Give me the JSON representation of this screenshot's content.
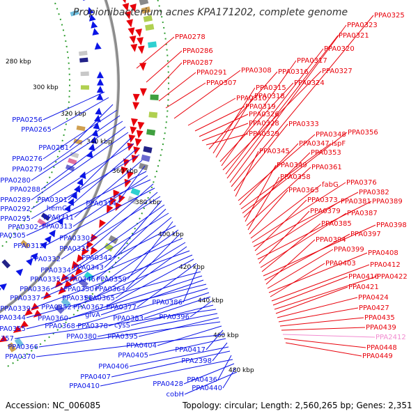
{
  "title": "Propionibacterium acnes KPA171202, complete genome",
  "accession": "Accession: NC_006085",
  "topology": "Topology: circular; Length: 2,560,265 bp; Genes: 2,351",
  "colors": {
    "forward": "#e8000a",
    "reverse": "#0a14e6",
    "highlight": "#f28bd0",
    "backbone": "#8c8c8c",
    "gc_dots": "#2f9e2f"
  },
  "kbp_labels": [
    "280 kbp",
    "300 kbp",
    "320 kbp",
    "340 kbp",
    "360 kbp",
    "380 kbp",
    "400 kbp",
    "420 kbp",
    "440 kbp",
    "460 kbp",
    "480 kbp"
  ],
  "forward_genes": [
    {
      "label": "PPA0278"
    },
    {
      "label": "PPA0286"
    },
    {
      "label": "PPA0287"
    },
    {
      "label": "PPA0291"
    },
    {
      "label": "PPA0307"
    },
    {
      "label": "PPA0308"
    },
    {
      "label": "PPA0310"
    },
    {
      "label": "PPA0319"
    },
    {
      "label": "PPA0326"
    },
    {
      "label": "PPA0328"
    },
    {
      "label": "PPA0329"
    },
    {
      "label": "PPA0316"
    },
    {
      "label": "PPA0315"
    },
    {
      "label": "PPA0318"
    },
    {
      "label": "PPA0324"
    },
    {
      "label": "PPA0317"
    },
    {
      "label": "PPA0327"
    },
    {
      "label": "PPA0320"
    },
    {
      "label": "PPA0321"
    },
    {
      "label": "PPA0323"
    },
    {
      "label": "PPA0325"
    },
    {
      "label": "PPA0333"
    },
    {
      "label": "PPA0345"
    },
    {
      "label": "PPA0348"
    },
    {
      "label": "PPA0347"
    },
    {
      "label": "ispF"
    },
    {
      "label": "PPA0356"
    },
    {
      "label": "PPA0353"
    },
    {
      "label": "PPA0349"
    },
    {
      "label": "PPA0361"
    },
    {
      "label": "PPA0358"
    },
    {
      "label": "PPA0363"
    },
    {
      "label": "fabG"
    },
    {
      "label": "PPA0376"
    },
    {
      "label": "PPA0382"
    },
    {
      "label": "PPA0373"
    },
    {
      "label": "PPA0381"
    },
    {
      "label": "PPA0389"
    },
    {
      "label": "PPA0379"
    },
    {
      "label": "PPA0387"
    },
    {
      "label": "PPA0385"
    },
    {
      "label": "PPA0398"
    },
    {
      "label": "PPA0397"
    },
    {
      "label": "PPA0394"
    },
    {
      "label": "PPA0399"
    },
    {
      "label": "PPA0408"
    },
    {
      "label": "PPA0403"
    },
    {
      "label": "PPA0412"
    },
    {
      "label": "PPA0416"
    },
    {
      "label": "PPA0422"
    },
    {
      "label": "PPA0421"
    },
    {
      "label": "PPA0424"
    },
    {
      "label": "PPA0427"
    },
    {
      "label": "PPA0435"
    },
    {
      "label": "PPA0439"
    },
    {
      "label": "PPA2412",
      "highlight": true
    },
    {
      "label": "PPA0448"
    },
    {
      "label": "PPA0449"
    }
  ],
  "reverse_genes": [
    {
      "label": "PPA0256"
    },
    {
      "label": "PPA0265"
    },
    {
      "label": "PPA0281"
    },
    {
      "label": "PPA0276"
    },
    {
      "label": "PPA0279"
    },
    {
      "label": "PPA0280"
    },
    {
      "label": "PPA0288"
    },
    {
      "label": "PPA0289"
    },
    {
      "label": "PPA0301"
    },
    {
      "label": "PPA0292"
    },
    {
      "label": "hemC"
    },
    {
      "label": "PPA0295"
    },
    {
      "label": "PPA0311"
    },
    {
      "label": "PPA0314"
    },
    {
      "label": "PPA0302"
    },
    {
      "label": "PPA0313"
    },
    {
      "label": "PPA0305"
    },
    {
      "label": "PPA0330"
    },
    {
      "label": "PPA0312"
    },
    {
      "label": "PPA0331"
    },
    {
      "label": "PPA0332"
    },
    {
      "label": "PPA0342"
    },
    {
      "label": "PPA0334"
    },
    {
      "label": "PPA0343"
    },
    {
      "label": "PPA0335"
    },
    {
      "label": "PPA0346"
    },
    {
      "label": "PPA0359"
    },
    {
      "label": "PPA0336"
    },
    {
      "label": "PPA0350"
    },
    {
      "label": "PPA0364"
    },
    {
      "label": "PPA0337"
    },
    {
      "label": "PPA0351"
    },
    {
      "label": "PPA0365"
    },
    {
      "label": "PPA0339"
    },
    {
      "label": "PPA0352"
    },
    {
      "label": "PPA0367"
    },
    {
      "label": "PPA0377"
    },
    {
      "label": "PPA0386"
    },
    {
      "label": "PPA0344"
    },
    {
      "label": "PPA0360"
    },
    {
      "label": "glvA"
    },
    {
      "label": "PPA0355"
    },
    {
      "label": "PPA0368"
    },
    {
      "label": "PPA0378"
    },
    {
      "label": "PPA0383"
    },
    {
      "label": "PPA0396"
    },
    {
      "label": "cysS"
    },
    {
      "label": "PPA0357"
    },
    {
      "label": "PPA0380"
    },
    {
      "label": "PPA0395"
    },
    {
      "label": "PPA0366"
    },
    {
      "label": "PPA0404"
    },
    {
      "label": "PPA0417"
    },
    {
      "label": "PPA0370"
    },
    {
      "label": "PPA0405"
    },
    {
      "label": "PPA2398"
    },
    {
      "label": "PPA0406"
    },
    {
      "label": "PPA0407"
    },
    {
      "label": "PPA0436"
    },
    {
      "label": "PPA0410"
    },
    {
      "label": "PPA0428"
    },
    {
      "label": "PPA0440"
    },
    {
      "label": "cobH"
    }
  ]
}
